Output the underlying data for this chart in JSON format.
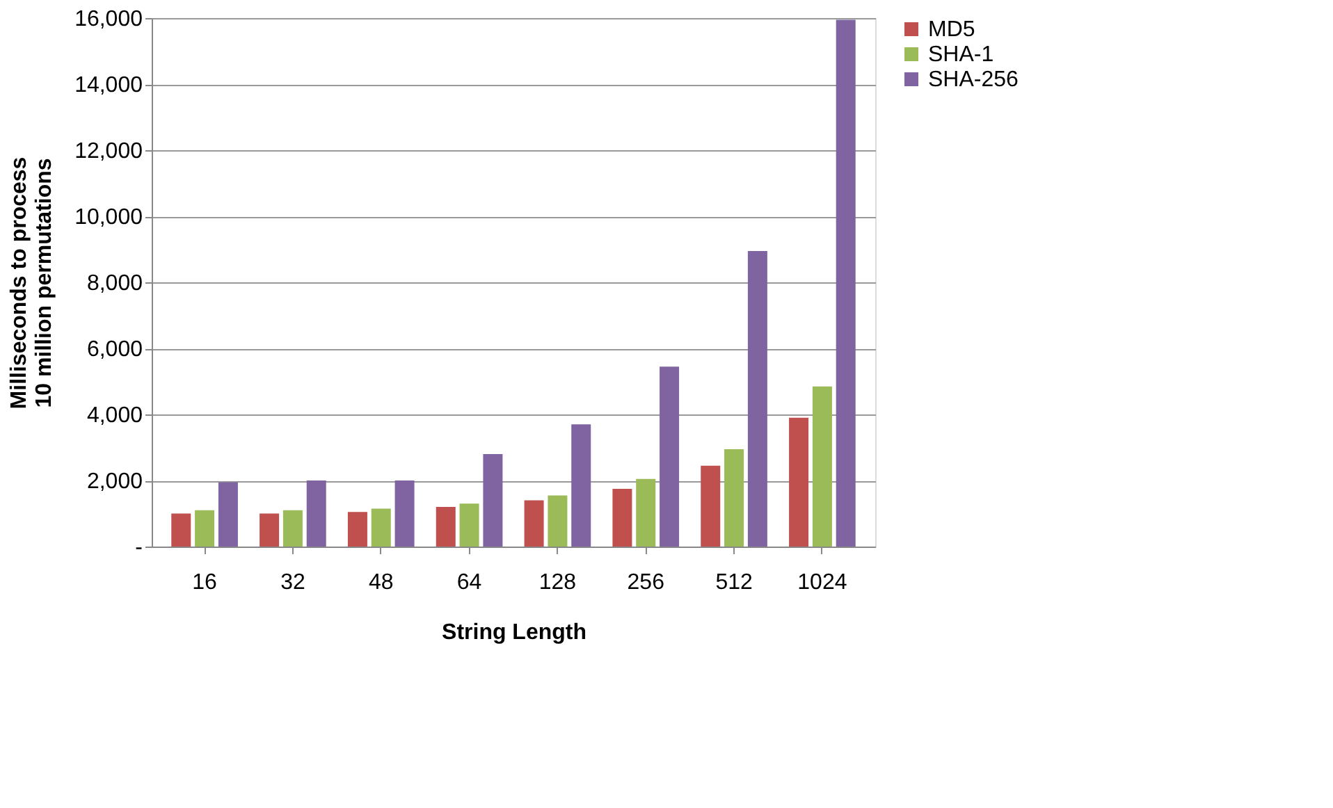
{
  "chart_data": {
    "type": "bar",
    "xlabel": "String Length",
    "ylabel": "Milliseconds to process\n10 million permutations",
    "categories": [
      "16",
      "32",
      "48",
      "64",
      "128",
      "256",
      "512",
      "1024"
    ],
    "series": [
      {
        "name": "MD5",
        "color": "#c0504d",
        "values": [
          1000,
          1000,
          1050,
          1200,
          1400,
          1750,
          2450,
          3900
        ]
      },
      {
        "name": "SHA-1",
        "color": "#9bbb59",
        "values": [
          1100,
          1100,
          1150,
          1300,
          1550,
          2050,
          2950,
          4850
        ]
      },
      {
        "name": "SHA-256",
        "color": "#8064a2",
        "values": [
          1950,
          2000,
          2000,
          2800,
          3700,
          5450,
          8950,
          15950
        ]
      }
    ],
    "ylim": [
      0,
      16000
    ],
    "yticks": [
      {
        "value": 0,
        "label": "-"
      },
      {
        "value": 2000,
        "label": "2,000"
      },
      {
        "value": 4000,
        "label": "4,000"
      },
      {
        "value": 6000,
        "label": "6,000"
      },
      {
        "value": 8000,
        "label": "8,000"
      },
      {
        "value": 10000,
        "label": "10,000"
      },
      {
        "value": 12000,
        "label": "12,000"
      },
      {
        "value": 14000,
        "label": "14,000"
      },
      {
        "value": 16000,
        "label": "16,000"
      }
    ],
    "grid": "y",
    "legend": "right"
  }
}
